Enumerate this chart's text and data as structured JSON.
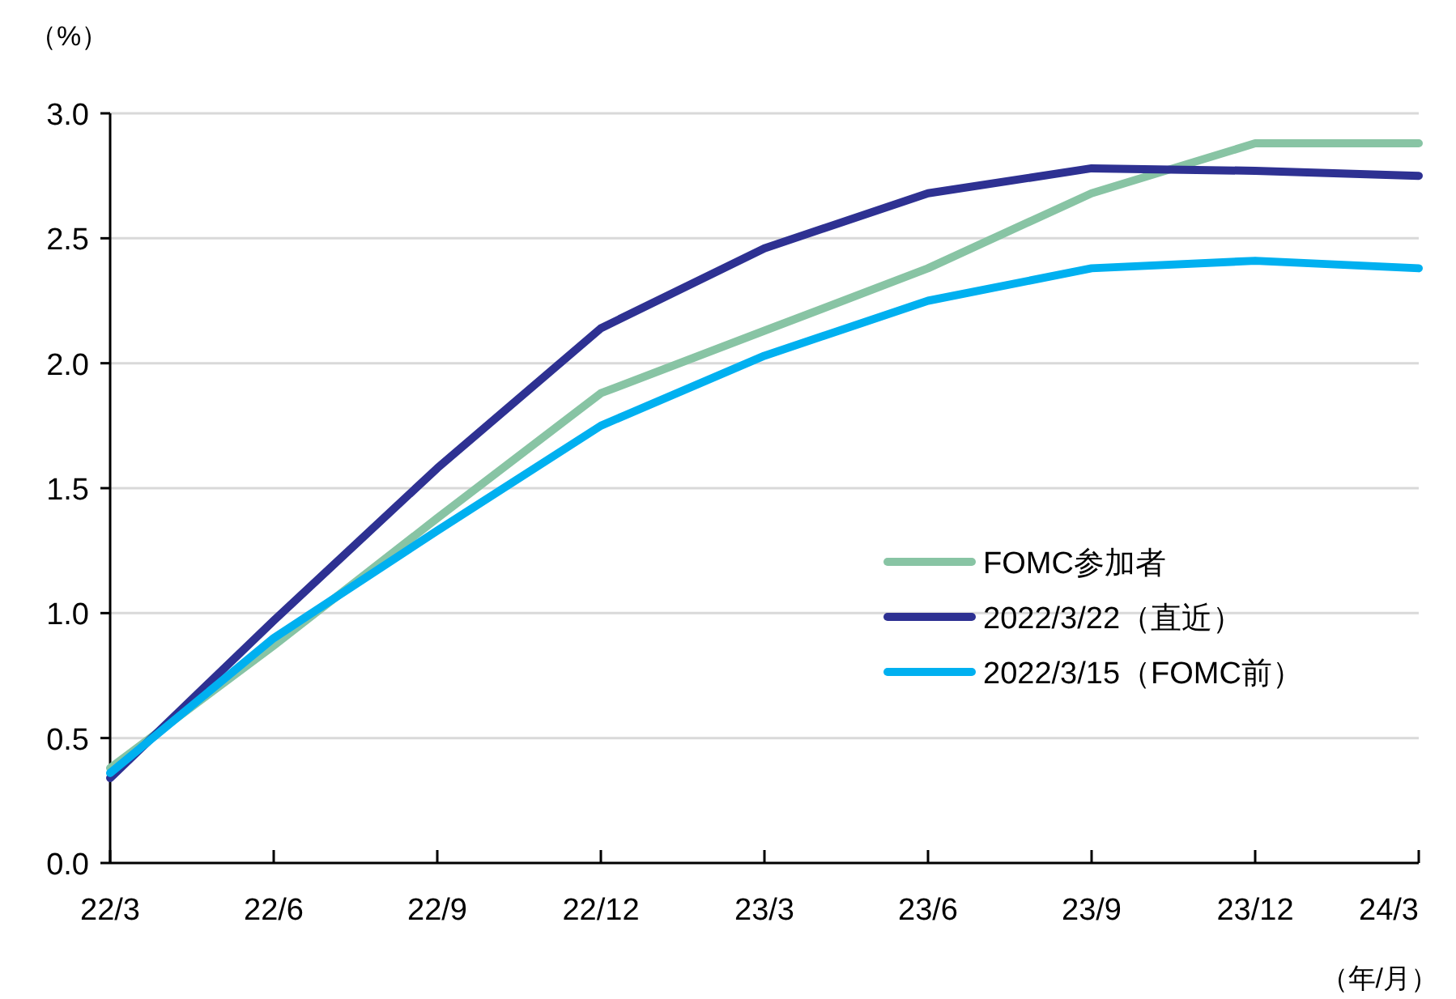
{
  "chart_data": {
    "type": "line",
    "ylabel": "（%）",
    "xlabel": "（年/月）",
    "categories": [
      "22/3",
      "22/6",
      "22/9",
      "22/12",
      "23/3",
      "23/6",
      "23/9",
      "23/12",
      "24/3"
    ],
    "series": [
      {
        "name": "FOMC参加者",
        "color": "#88c4a4",
        "values": [
          0.38,
          0.87,
          1.38,
          1.88,
          2.13,
          2.38,
          2.68,
          2.88,
          2.88
        ]
      },
      {
        "name": "2022/3/22（直近）",
        "color": "#2e3192",
        "values": [
          0.34,
          0.97,
          1.58,
          2.14,
          2.46,
          2.68,
          2.78,
          2.77,
          2.75
        ]
      },
      {
        "name": "2022/3/15（FOMC前）",
        "color": "#00b0f0",
        "values": [
          0.36,
          0.9,
          1.33,
          1.75,
          2.03,
          2.25,
          2.38,
          2.41,
          2.38
        ]
      }
    ],
    "ylim": [
      0,
      3
    ],
    "yticks": [
      {
        "value": 0,
        "label": "0.0"
      },
      {
        "value": 0.5,
        "label": "0.5"
      },
      {
        "value": 1,
        "label": "1.0"
      },
      {
        "value": 1.5,
        "label": "1.5"
      },
      {
        "value": 2,
        "label": "2.0"
      },
      {
        "value": 2.5,
        "label": "2.5"
      },
      {
        "value": 3,
        "label": "3.0"
      }
    ],
    "grid": "y",
    "legend": "right",
    "line_style": "solid"
  }
}
